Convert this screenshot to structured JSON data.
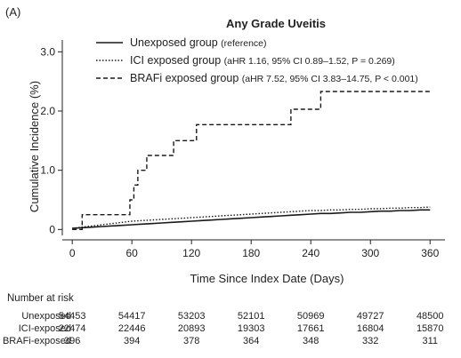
{
  "panel_label": "(A)",
  "chart_data": {
    "type": "line",
    "title": "Any Grade Uveitis",
    "xlabel": "Time Since Index Date (Days)",
    "ylabel": "Cumulative Incidence (%)",
    "xlim": [
      -10,
      375
    ],
    "ylim": [
      -0.1,
      3.2
    ],
    "xticks": [
      0,
      60,
      120,
      180,
      240,
      300,
      360
    ],
    "yticks": [
      0,
      1.0,
      2.0,
      3.0
    ],
    "ytick_labels": [
      "0",
      "1.0",
      "2.0",
      "3.0"
    ],
    "grid": false,
    "legend_position": "top-left",
    "series": [
      {
        "name": "Unexposed group",
        "note": "(reference)",
        "style": "solid",
        "color": "#1a1a1a",
        "x": [
          0,
          10,
          20,
          30,
          40,
          50,
          60,
          70,
          80,
          90,
          100,
          110,
          120,
          130,
          140,
          150,
          160,
          170,
          180,
          190,
          200,
          210,
          220,
          230,
          240,
          250,
          260,
          270,
          280,
          290,
          300,
          310,
          320,
          330,
          340,
          350,
          360
        ],
        "y": [
          0.02,
          0.03,
          0.04,
          0.05,
          0.06,
          0.07,
          0.08,
          0.09,
          0.1,
          0.11,
          0.12,
          0.13,
          0.14,
          0.15,
          0.16,
          0.17,
          0.18,
          0.19,
          0.2,
          0.21,
          0.22,
          0.23,
          0.24,
          0.25,
          0.26,
          0.27,
          0.27,
          0.28,
          0.29,
          0.29,
          0.3,
          0.31,
          0.31,
          0.32,
          0.32,
          0.33,
          0.33
        ]
      },
      {
        "name": "ICI exposed group",
        "note": "(aHR 1.16, 95% CI 0.89–1.52, P = 0.269)",
        "style": "dotted",
        "color": "#1a1a1a",
        "x": [
          0,
          10,
          20,
          30,
          40,
          50,
          60,
          70,
          80,
          90,
          100,
          110,
          120,
          130,
          140,
          150,
          160,
          170,
          180,
          190,
          200,
          210,
          220,
          230,
          240,
          250,
          260,
          270,
          280,
          290,
          300,
          310,
          320,
          330,
          340,
          350,
          360
        ],
        "y": [
          0.02,
          0.04,
          0.06,
          0.08,
          0.1,
          0.12,
          0.14,
          0.15,
          0.16,
          0.17,
          0.18,
          0.19,
          0.2,
          0.21,
          0.22,
          0.23,
          0.24,
          0.25,
          0.26,
          0.27,
          0.28,
          0.29,
          0.3,
          0.31,
          0.32,
          0.32,
          0.33,
          0.33,
          0.34,
          0.34,
          0.35,
          0.35,
          0.36,
          0.36,
          0.37,
          0.37,
          0.38
        ]
      },
      {
        "name": "BRAFi exposed group",
        "note": "(aHR 7.52, 95% CI 3.83–14.75, P < 0.001)",
        "style": "dashed",
        "color": "#1a1a1a",
        "step": true,
        "x": [
          0,
          10,
          58,
          62,
          66,
          70,
          75,
          95,
          102,
          112,
          125,
          220,
          225,
          245,
          250,
          362
        ],
        "y": [
          0.0,
          0.25,
          0.5,
          0.75,
          1.0,
          1.0,
          1.25,
          1.25,
          1.5,
          1.5,
          1.77,
          2.03,
          2.03,
          2.03,
          2.33,
          2.33
        ]
      }
    ]
  },
  "risk_table": {
    "heading": "Number at risk",
    "rows": [
      {
        "label": "Unexposed",
        "values": [
          "54453",
          "54417",
          "53203",
          "52101",
          "50969",
          "49727",
          "48500"
        ]
      },
      {
        "label": "ICI-exposed",
        "values": [
          "22474",
          "22446",
          "20893",
          "19303",
          "17661",
          "16804",
          "15870"
        ]
      },
      {
        "label": "BRAFi-exposed",
        "values": [
          "396",
          "394",
          "378",
          "364",
          "348",
          "332",
          "311"
        ]
      }
    ]
  }
}
